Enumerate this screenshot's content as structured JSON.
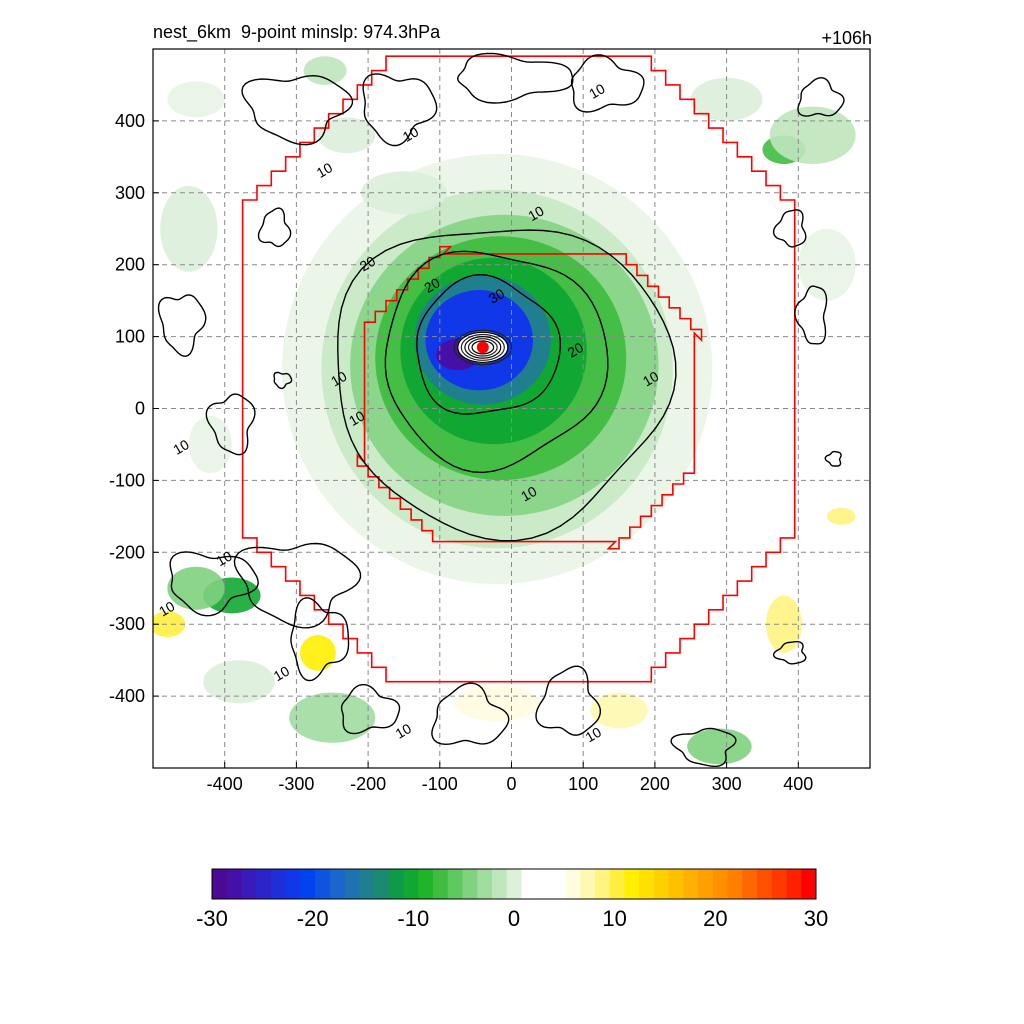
{
  "header": {
    "title_left": "nest_6km  9-point minslp: 974.3hPa",
    "title_right": "+106h"
  },
  "chart_data": {
    "type": "heatmap",
    "title": "nest_6km  9-point minslp: 974.3hPa",
    "time_label": "+106h",
    "xlim": [
      -500,
      500
    ],
    "ylim": [
      -500,
      500
    ],
    "xticks": [
      -400,
      -300,
      -200,
      -100,
      0,
      100,
      200,
      300,
      400
    ],
    "yticks": [
      -400,
      -300,
      -200,
      -100,
      0,
      100,
      200,
      300,
      400
    ],
    "grid": true,
    "storm_center": {
      "x": -40,
      "y": 85
    },
    "contour_levels": [
      10,
      20,
      30
    ],
    "contour_labels": [
      "10",
      "20",
      "30"
    ],
    "colorbar": {
      "min": -30,
      "max": 30,
      "ticks": [
        -30,
        -20,
        -10,
        0,
        10,
        20,
        30
      ],
      "colors": [
        "#4b0a96",
        "#4510a8",
        "#3a1ab8",
        "#2c24c8",
        "#1e2ed8",
        "#1038e8",
        "#0044f0",
        "#0d55e0",
        "#1a66cc",
        "#1f72b0",
        "#1f7f8f",
        "#1a8a70",
        "#0f9a4a",
        "#10a832",
        "#22b428",
        "#40bd40",
        "#60c860",
        "#80d280",
        "#a0dc9e",
        "#bfe6bc",
        "#dcf0da",
        "#ffffff",
        "#ffffff",
        "#ffffff",
        "#fffce0",
        "#fff8b0",
        "#fff480",
        "#ffee40",
        "#fff000",
        "#ffe000",
        "#ffd000",
        "#ffc000",
        "#ffb000",
        "#ffa000",
        "#ff9000",
        "#ff8000",
        "#ff6800",
        "#ff5000",
        "#ff3a00",
        "#ff2000",
        "#ff0000"
      ]
    }
  },
  "colors": {
    "boundary": "#ff0000",
    "contour": "#000000",
    "grid": "#8a8a8a",
    "center_marker": "#ff0000"
  }
}
